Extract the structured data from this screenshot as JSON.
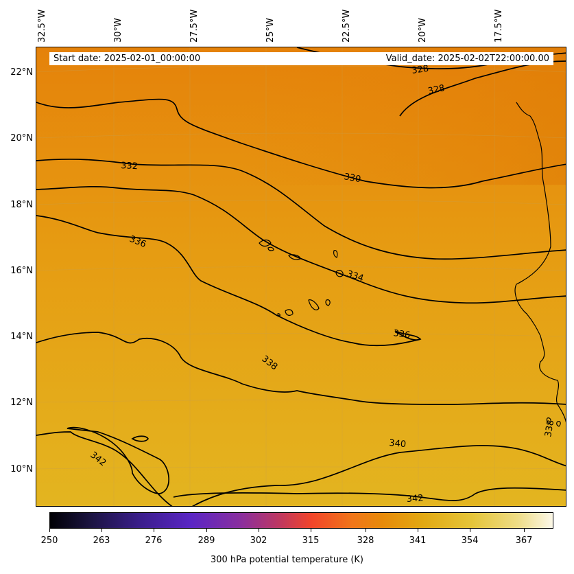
{
  "header": {
    "start_date": "Start date: 2025-02-01_00:00:00",
    "valid_date": "Valid_date: 2025-02-02T22:00:00.00"
  },
  "longitude_labels": [
    "32.5°W",
    "30°W",
    "27.5°W",
    "25°W",
    "22.5°W",
    "20°W",
    "17.5°W"
  ],
  "latitude_labels": [
    "22°N",
    "20°N",
    "18°N",
    "16°N",
    "14°N",
    "12°N",
    "10°N"
  ],
  "contour_labels": [
    "328",
    "328",
    "330",
    "332",
    "334",
    "336",
    "336",
    "338",
    "338",
    "340",
    "342",
    "342"
  ],
  "colorbar": {
    "ticks": [
      "250",
      "263",
      "276",
      "289",
      "302",
      "315",
      "328",
      "341",
      "354",
      "367"
    ],
    "title": "300 hPa potential temperature (K)",
    "colors": [
      "#000004",
      "#1b1440",
      "#3b1e8c",
      "#5a26c4",
      "#8a2f9e",
      "#c1385e",
      "#f2452a",
      "#f0751a",
      "#e88a0a",
      "#e2a812",
      "#e5c53a",
      "#eedc86",
      "#fcf8e8"
    ]
  },
  "map_colors": {
    "north": "#e5820a",
    "middle": "#e69c12",
    "south": "#e3b520",
    "contour": "#000000",
    "coast": "#000000"
  }
}
